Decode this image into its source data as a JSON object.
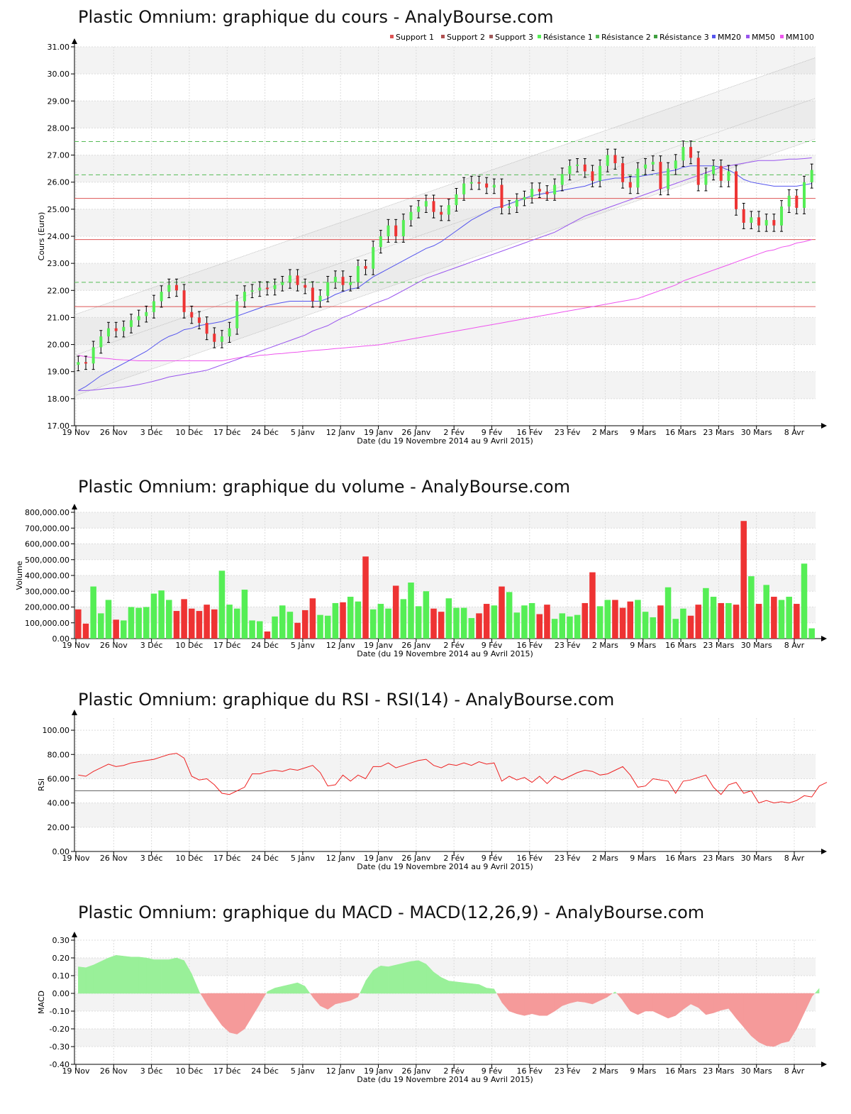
{
  "titles": {
    "price": "Plastic Omnium: graphique du cours - AnalyBourse.com",
    "volume": "Plastic Omnium: graphique du volume - AnalyBourse.com",
    "rsi": "Plastic Omnium: graphique du RSI - RSI(14) - AnalyBourse.com",
    "macd": "Plastic Omnium: graphique du MACD - MACD(12,26,9) - AnalyBourse.com"
  },
  "x_axis": {
    "label": "Date (du 19 Novembre 2014 au 9 Avril 2015)",
    "ticks": [
      "19 Nov",
      "26 Nov",
      "3 Déc",
      "10 Déc",
      "17 Déc",
      "24 Déc",
      "5 Janv",
      "12 Janv",
      "19 Janv",
      "26 Janv",
      "2 Fév",
      "9 Fév",
      "16 Fév",
      "23 Fév",
      "2 Mars",
      "9 Mars",
      "16 Mars",
      "23 Mars",
      "30 Mars",
      "8 Avr"
    ],
    "tick_sessions": [
      0,
      5,
      10,
      15,
      20,
      25,
      30,
      35,
      40,
      45,
      50,
      55,
      60,
      65,
      70,
      75,
      80,
      85,
      90,
      95
    ]
  },
  "colors": {
    "up": "#55ee55",
    "down": "#ee3333",
    "support": "#dd5555",
    "resistance": "#55bb55",
    "mm20": "#5555ee",
    "mm50": "#9955ee",
    "mm100": "#ee55ee",
    "macd_pos": "#99f099",
    "macd_neg": "#f59a9a",
    "rsi_line": "#ee2222"
  },
  "chart_data": [
    {
      "id": "price",
      "type": "candlestick",
      "title": "Plastic Omnium: graphique du cours - AnalyBourse.com",
      "ylabel": "Cours (Euro)",
      "xlabel": "Date (du 19 Novembre 2014 au 9 Avril 2015)",
      "ylim": [
        17,
        31
      ],
      "yticks": [
        "17.00",
        "18.00",
        "19.00",
        "20.00",
        "21.00",
        "22.00",
        "23.00",
        "24.00",
        "25.00",
        "26.00",
        "27.00",
        "28.00",
        "29.00",
        "30.00",
        "31.00"
      ],
      "legend": [
        "Support 1",
        "Support 2",
        "Support 3",
        "Résistance 1",
        "Résistance 2",
        "Résistance 3",
        "MM20",
        "MM50",
        "MM100"
      ],
      "legend_position": "top-right",
      "levels": {
        "support": [
          21.4,
          23.88,
          25.4
        ],
        "resistance": [
          22.3,
          26.27,
          27.5
        ]
      },
      "channel": {
        "upper": [
          21.1,
          30.6
        ],
        "lower": [
          18.1,
          27.6
        ],
        "mid": [
          19.6,
          29.1
        ]
      },
      "close": [
        19.35,
        19.3,
        19.9,
        20.3,
        20.6,
        20.5,
        20.65,
        20.9,
        21.05,
        21.2,
        21.6,
        21.95,
        22.2,
        22.0,
        21.2,
        21.0,
        20.8,
        20.4,
        20.1,
        20.3,
        20.6,
        21.6,
        21.95,
        22.0,
        22.1,
        22.05,
        22.2,
        22.3,
        22.55,
        22.2,
        22.1,
        21.6,
        21.8,
        22.3,
        22.5,
        22.2,
        22.3,
        22.9,
        22.8,
        23.6,
        24.0,
        24.4,
        24.0,
        24.6,
        24.9,
        25.1,
        25.3,
        24.9,
        24.8,
        25.15,
        25.55,
        25.95,
        26.0,
        25.95,
        25.8,
        25.9,
        25.05,
        25.1,
        25.35,
        25.45,
        25.75,
        25.65,
        25.55,
        25.9,
        26.3,
        26.6,
        26.65,
        26.4,
        26.05,
        26.6,
        27.0,
        26.7,
        26.0,
        25.8,
        26.5,
        26.65,
        26.75,
        25.75,
        26.5,
        26.8,
        27.3,
        26.9,
        25.9,
        26.3,
        26.6,
        26.05,
        26.4,
        25.0,
        24.5,
        24.7,
        24.4,
        24.6,
        24.4,
        25.1,
        25.5,
        25.05,
        26.0,
        26.45
      ],
      "ma20": [
        18.3,
        18.45,
        18.65,
        18.85,
        19.0,
        19.15,
        19.3,
        19.45,
        19.6,
        19.75,
        19.95,
        20.15,
        20.3,
        20.4,
        20.55,
        20.6,
        20.7,
        20.75,
        20.8,
        20.85,
        20.95,
        21.05,
        21.15,
        21.25,
        21.35,
        21.45,
        21.5,
        21.55,
        21.6,
        21.6,
        21.6,
        21.6,
        21.6,
        21.7,
        21.85,
        21.95,
        22.05,
        22.1,
        22.3,
        22.5,
        22.65,
        22.8,
        22.95,
        23.1,
        23.25,
        23.4,
        23.55,
        23.65,
        23.8,
        24.0,
        24.2,
        24.4,
        24.6,
        24.75,
        24.9,
        25.05,
        25.1,
        25.2,
        25.3,
        25.4,
        25.5,
        25.55,
        25.6,
        25.65,
        25.7,
        25.75,
        25.8,
        25.85,
        25.95,
        26.05,
        26.1,
        26.15,
        26.15,
        26.2,
        26.2,
        26.25,
        26.3,
        26.35,
        26.4,
        26.45,
        26.55,
        26.6,
        26.6,
        26.6,
        26.6,
        26.55,
        26.45,
        26.3,
        26.1,
        26.0,
        25.95,
        25.9,
        25.85,
        25.85,
        25.85,
        25.85,
        25.9,
        25.95
      ],
      "ma50": [
        18.3,
        18.3,
        18.32,
        18.35,
        18.38,
        18.4,
        18.43,
        18.47,
        18.52,
        18.58,
        18.65,
        18.72,
        18.8,
        18.85,
        18.9,
        18.95,
        19.0,
        19.05,
        19.15,
        19.25,
        19.35,
        19.45,
        19.55,
        19.65,
        19.75,
        19.85,
        19.95,
        20.05,
        20.15,
        20.25,
        20.35,
        20.5,
        20.6,
        20.7,
        20.85,
        21.0,
        21.1,
        21.25,
        21.35,
        21.5,
        21.6,
        21.7,
        21.85,
        22.0,
        22.15,
        22.3,
        22.45,
        22.55,
        22.65,
        22.75,
        22.85,
        22.95,
        23.05,
        23.15,
        23.25,
        23.35,
        23.45,
        23.55,
        23.65,
        23.75,
        23.85,
        23.95,
        24.05,
        24.15,
        24.3,
        24.45,
        24.6,
        24.75,
        24.85,
        24.95,
        25.05,
        25.15,
        25.25,
        25.35,
        25.45,
        25.55,
        25.65,
        25.75,
        25.85,
        25.95,
        26.05,
        26.15,
        26.25,
        26.35,
        26.45,
        26.55,
        26.6,
        26.65,
        26.7,
        26.75,
        26.8,
        26.8,
        26.8,
        26.82,
        26.85,
        26.85,
        26.87,
        26.9
      ],
      "ma100": [
        19.6,
        19.55,
        19.52,
        19.5,
        19.48,
        19.45,
        19.43,
        19.42,
        19.4,
        19.4,
        19.4,
        19.4,
        19.4,
        19.4,
        19.4,
        19.4,
        19.4,
        19.4,
        19.4,
        19.4,
        19.45,
        19.5,
        19.55,
        19.55,
        19.6,
        19.62,
        19.65,
        19.67,
        19.7,
        19.72,
        19.75,
        19.78,
        19.8,
        19.82,
        19.85,
        19.87,
        19.9,
        19.92,
        19.95,
        19.97,
        20.0,
        20.05,
        20.1,
        20.15,
        20.2,
        20.25,
        20.3,
        20.35,
        20.4,
        20.45,
        20.5,
        20.55,
        20.6,
        20.65,
        20.7,
        20.75,
        20.8,
        20.85,
        20.9,
        20.95,
        21.0,
        21.05,
        21.1,
        21.15,
        21.2,
        21.25,
        21.3,
        21.35,
        21.4,
        21.45,
        21.5,
        21.55,
        21.6,
        21.65,
        21.7,
        21.8,
        21.9,
        22.0,
        22.1,
        22.2,
        22.35,
        22.45,
        22.55,
        22.65,
        22.75,
        22.85,
        22.95,
        23.05,
        23.15,
        23.25,
        23.35,
        23.45,
        23.5,
        23.6,
        23.65,
        23.75,
        23.8,
        23.88
      ]
    },
    {
      "id": "volume",
      "type": "bar",
      "title": "Plastic Omnium: graphique du volume - AnalyBourse.com",
      "ylabel": "Volume",
      "xlabel": "Date (du 19 Novembre 2014 au 9 Avril 2015)",
      "ylim": [
        0,
        800000
      ],
      "yticks": [
        "0.00",
        "100,000.00",
        "200,000.00",
        "300,000.00",
        "400,000.00",
        "500,000.00",
        "600,000.00",
        "700,000.00",
        "800,000.00"
      ],
      "values": [
        185000,
        95000,
        330000,
        160000,
        245000,
        120000,
        115000,
        200000,
        195000,
        200000,
        285000,
        305000,
        245000,
        175000,
        250000,
        190000,
        175000,
        215000,
        185000,
        430000,
        215000,
        190000,
        310000,
        115000,
        110000,
        45000,
        140000,
        210000,
        170000,
        100000,
        180000,
        255000,
        150000,
        145000,
        225000,
        230000,
        265000,
        235000,
        520000,
        185000,
        220000,
        190000,
        335000,
        250000,
        355000,
        205000,
        300000,
        190000,
        170000,
        255000,
        195000,
        195000,
        130000,
        160000,
        220000,
        210000,
        330000,
        295000,
        165000,
        210000,
        225000,
        155000,
        215000,
        125000,
        160000,
        140000,
        150000,
        225000,
        420000,
        205000,
        245000,
        245000,
        195000,
        235000,
        245000,
        170000,
        135000,
        210000,
        325000,
        125000,
        190000,
        145000,
        215000,
        320000,
        265000,
        225000,
        225000,
        215000,
        745000,
        395000,
        220000,
        340000,
        265000,
        245000,
        265000,
        220000,
        475000,
        65000
      ]
    },
    {
      "id": "rsi",
      "type": "line",
      "title": "Plastic Omnium: graphique du RSI - RSI(14) - AnalyBourse.com",
      "ylabel": "RSI",
      "xlabel": "Date (du 19 Novembre 2014 au 9 Avril 2015)",
      "ylim": [
        0,
        110
      ],
      "yticks": [
        "0.00",
        "20.00",
        "40.00",
        "60.00",
        "80.00",
        "100.00"
      ],
      "reference_line": 50,
      "values": [
        63,
        62,
        66,
        69,
        72,
        70,
        71,
        73,
        74,
        75,
        76,
        78,
        80,
        81,
        77,
        62,
        59,
        60,
        55,
        48,
        47,
        50,
        53,
        64,
        64,
        66,
        67,
        66,
        68,
        67,
        69,
        71,
        65,
        54,
        55,
        63,
        58,
        63,
        60,
        70,
        70,
        73,
        69,
        71,
        73,
        75,
        76,
        71,
        69,
        72,
        71,
        73,
        71,
        74,
        72,
        73,
        58,
        62,
        59,
        61,
        57,
        62,
        56,
        62,
        59,
        62,
        65,
        67,
        66,
        63,
        64,
        67,
        70,
        63,
        53,
        54,
        60,
        59,
        58,
        48,
        58,
        59,
        61,
        63,
        53,
        47,
        55,
        57,
        48,
        50,
        40,
        42,
        40,
        41,
        40,
        42,
        46,
        45,
        54,
        57
      ]
    },
    {
      "id": "macd",
      "type": "area",
      "title": "Plastic Omnium: graphique du MACD - MACD(12,26,9) - AnalyBourse.com",
      "ylabel": "MACD",
      "xlabel": "Date (du 19 Novembre 2014 au 9 Avril 2015)",
      "ylim": [
        -0.4,
        0.3
      ],
      "yticks": [
        "-0.40",
        "-0.30",
        "-0.20",
        "-0.10",
        "0.00",
        "0.10",
        "0.20",
        "0.30"
      ],
      "values": [
        0.15,
        0.145,
        0.16,
        0.18,
        0.2,
        0.215,
        0.21,
        0.205,
        0.205,
        0.2,
        0.19,
        0.19,
        0.19,
        0.2,
        0.185,
        0.11,
        0.01,
        -0.06,
        -0.12,
        -0.18,
        -0.22,
        -0.23,
        -0.2,
        -0.13,
        -0.06,
        0.01,
        0.03,
        0.04,
        0.05,
        0.06,
        0.04,
        -0.02,
        -0.07,
        -0.09,
        -0.06,
        -0.05,
        -0.04,
        -0.02,
        0.07,
        0.13,
        0.155,
        0.15,
        0.16,
        0.17,
        0.18,
        0.185,
        0.165,
        0.12,
        0.09,
        0.07,
        0.065,
        0.06,
        0.055,
        0.05,
        0.03,
        0.025,
        -0.05,
        -0.1,
        -0.115,
        -0.125,
        -0.115,
        -0.125,
        -0.125,
        -0.1,
        -0.07,
        -0.055,
        -0.045,
        -0.05,
        -0.06,
        -0.04,
        -0.02,
        0.01,
        -0.04,
        -0.1,
        -0.12,
        -0.1,
        -0.1,
        -0.12,
        -0.14,
        -0.125,
        -0.09,
        -0.06,
        -0.08,
        -0.12,
        -0.11,
        -0.095,
        -0.085,
        -0.14,
        -0.19,
        -0.24,
        -0.275,
        -0.295,
        -0.3,
        -0.28,
        -0.27,
        -0.2,
        -0.11,
        -0.02,
        0.03
      ]
    }
  ]
}
